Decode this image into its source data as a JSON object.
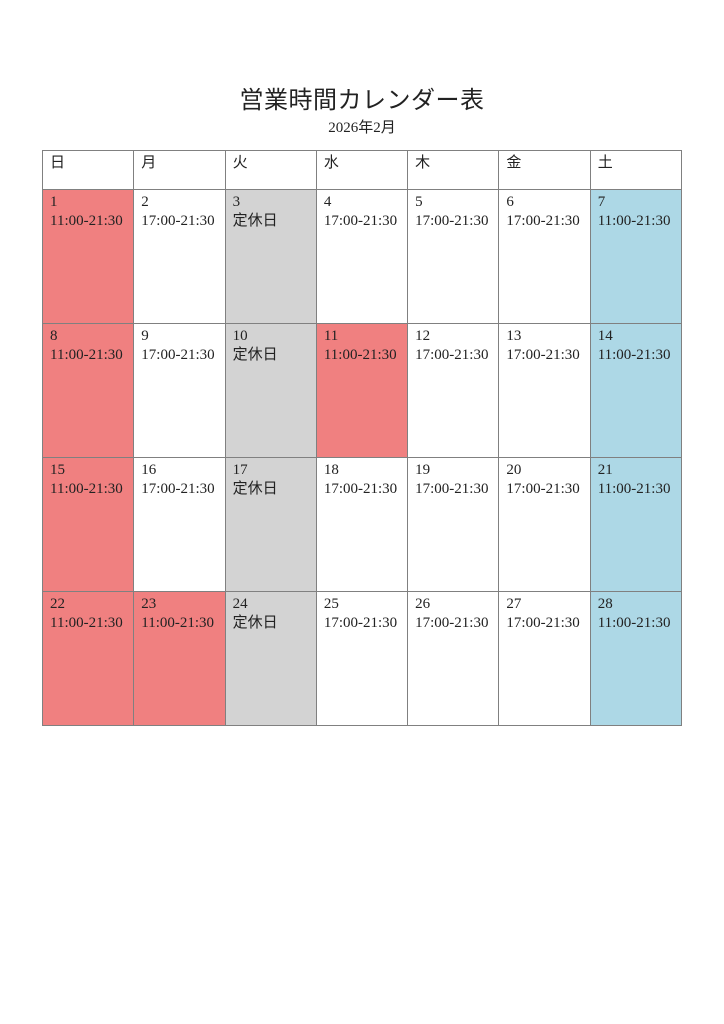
{
  "title": "営業時間カレンダー表",
  "subtitle": "2026年2月",
  "weekday_headers": [
    "日",
    "月",
    "火",
    "水",
    "木",
    "金",
    "土"
  ],
  "colors": {
    "holiday_full_day_bg": "#F08080",
    "saturday_full_day_bg": "#ADD8E6",
    "closed_day_bg": "#D3D3D3",
    "weekday_evening_bg": "#FFFFFF",
    "grid_border": "#808080",
    "text": "#222222"
  },
  "hours_legend": {
    "full_day": "11:00-21:30",
    "evening_only": "17:00-21:30",
    "closed": "定休日"
  },
  "weeks": [
    [
      {
        "date": "1",
        "hours": "11:00-21:30",
        "type": "holiday"
      },
      {
        "date": "2",
        "hours": "17:00-21:30",
        "type": "weekday"
      },
      {
        "date": "3",
        "hours": "定休日",
        "type": "closed"
      },
      {
        "date": "4",
        "hours": "17:00-21:30",
        "type": "weekday"
      },
      {
        "date": "5",
        "hours": "17:00-21:30",
        "type": "weekday"
      },
      {
        "date": "6",
        "hours": "17:00-21:30",
        "type": "weekday"
      },
      {
        "date": "7",
        "hours": "11:00-21:30",
        "type": "saturday"
      }
    ],
    [
      {
        "date": "8",
        "hours": "11:00-21:30",
        "type": "holiday"
      },
      {
        "date": "9",
        "hours": "17:00-21:30",
        "type": "weekday"
      },
      {
        "date": "10",
        "hours": "定休日",
        "type": "closed"
      },
      {
        "date": "11",
        "hours": "11:00-21:30",
        "type": "holiday"
      },
      {
        "date": "12",
        "hours": "17:00-21:30",
        "type": "weekday"
      },
      {
        "date": "13",
        "hours": "17:00-21:30",
        "type": "weekday"
      },
      {
        "date": "14",
        "hours": "11:00-21:30",
        "type": "saturday"
      }
    ],
    [
      {
        "date": "15",
        "hours": "11:00-21:30",
        "type": "holiday"
      },
      {
        "date": "16",
        "hours": "17:00-21:30",
        "type": "weekday"
      },
      {
        "date": "17",
        "hours": "定休日",
        "type": "closed"
      },
      {
        "date": "18",
        "hours": "17:00-21:30",
        "type": "weekday"
      },
      {
        "date": "19",
        "hours": "17:00-21:30",
        "type": "weekday"
      },
      {
        "date": "20",
        "hours": "17:00-21:30",
        "type": "weekday"
      },
      {
        "date": "21",
        "hours": "11:00-21:30",
        "type": "saturday"
      }
    ],
    [
      {
        "date": "22",
        "hours": "11:00-21:30",
        "type": "holiday"
      },
      {
        "date": "23",
        "hours": "11:00-21:30",
        "type": "holiday"
      },
      {
        "date": "24",
        "hours": "定休日",
        "type": "closed"
      },
      {
        "date": "25",
        "hours": "17:00-21:30",
        "type": "weekday"
      },
      {
        "date": "26",
        "hours": "17:00-21:30",
        "type": "weekday"
      },
      {
        "date": "27",
        "hours": "17:00-21:30",
        "type": "weekday"
      },
      {
        "date": "28",
        "hours": "11:00-21:30",
        "type": "saturday"
      }
    ]
  ]
}
